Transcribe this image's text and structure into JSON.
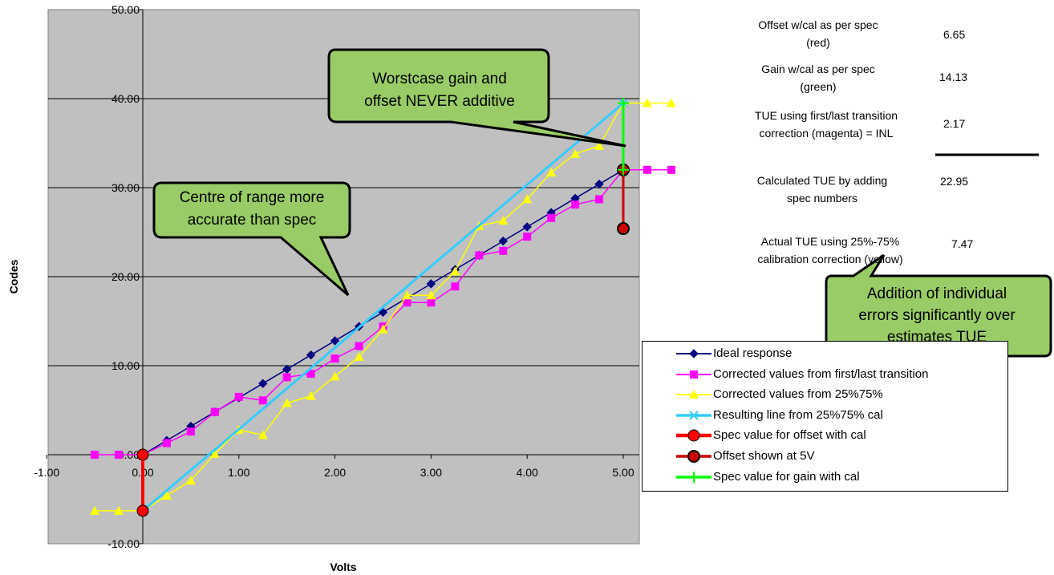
{
  "chart_data": {
    "type": "line",
    "xlabel": "Volts",
    "ylabel": "Codes",
    "xlim": [
      -1,
      6
    ],
    "ylim": [
      -10,
      50
    ],
    "x_ticks": [
      "-1.00",
      "0.00",
      "1.00",
      "2.00",
      "3.00",
      "4.00",
      "5.00"
    ],
    "y_ticks": [
      "-10.00",
      "0.00",
      "10.00",
      "20.00",
      "30.00",
      "40.00",
      "50.00"
    ],
    "grid": "horizontal",
    "legend_position": "bottom-right",
    "series": [
      {
        "name": "Ideal response",
        "color": "#000080",
        "marker": "diamond",
        "points": [
          [
            0,
            0
          ],
          [
            0.25,
            1.6
          ],
          [
            0.5,
            3.2
          ],
          [
            0.75,
            4.8
          ],
          [
            1.0,
            6.4
          ],
          [
            1.25,
            8.0
          ],
          [
            1.5,
            9.6
          ],
          [
            1.75,
            11.2
          ],
          [
            2.0,
            12.8
          ],
          [
            2.25,
            14.4
          ],
          [
            2.5,
            16.0
          ],
          [
            2.75,
            17.6
          ],
          [
            3.0,
            19.2
          ],
          [
            3.25,
            20.8
          ],
          [
            3.5,
            22.4
          ],
          [
            3.75,
            24.0
          ],
          [
            4.0,
            25.6
          ],
          [
            4.25,
            27.2
          ],
          [
            4.5,
            28.8
          ],
          [
            4.75,
            30.4
          ],
          [
            5.0,
            32.0
          ]
        ]
      },
      {
        "name": "Corrected values from first/last transition",
        "color": "#ff00ff",
        "marker": "square",
        "points": [
          [
            -0.5,
            0
          ],
          [
            -0.25,
            0
          ],
          [
            0,
            0
          ],
          [
            0.25,
            1.3
          ],
          [
            0.5,
            2.6
          ],
          [
            0.75,
            4.8
          ],
          [
            1.0,
            6.5
          ],
          [
            1.25,
            6.1
          ],
          [
            1.5,
            8.7
          ],
          [
            1.75,
            9.1
          ],
          [
            2.0,
            10.8
          ],
          [
            2.25,
            12.2
          ],
          [
            2.5,
            14.4
          ],
          [
            2.75,
            17.1
          ],
          [
            3.0,
            17.1
          ],
          [
            3.25,
            18.9
          ],
          [
            3.5,
            22.4
          ],
          [
            3.75,
            22.9
          ],
          [
            4.0,
            24.5
          ],
          [
            4.25,
            26.6
          ],
          [
            4.5,
            28.1
          ],
          [
            4.75,
            28.7
          ],
          [
            5.0,
            32.0
          ],
          [
            5.25,
            32.0
          ],
          [
            5.5,
            32.0
          ]
        ]
      },
      {
        "name": "Corrected values from 25%75%",
        "color": "#ffff00",
        "marker": "triangle",
        "points": [
          [
            -0.5,
            -6.3
          ],
          [
            -0.25,
            -6.3
          ],
          [
            0,
            -6.3
          ],
          [
            0.25,
            -4.6
          ],
          [
            0.5,
            -2.9
          ],
          [
            0.75,
            0.1
          ],
          [
            1.0,
            2.8
          ],
          [
            1.25,
            2.2
          ],
          [
            1.5,
            5.8
          ],
          [
            1.75,
            6.6
          ],
          [
            2.0,
            8.8
          ],
          [
            2.25,
            11.0
          ],
          [
            2.5,
            14.1
          ],
          [
            2.75,
            17.9
          ],
          [
            3.0,
            17.9
          ],
          [
            3.25,
            20.6
          ],
          [
            3.5,
            25.7
          ],
          [
            3.75,
            26.3
          ],
          [
            4.0,
            28.7
          ],
          [
            4.25,
            31.7
          ],
          [
            4.5,
            33.8
          ],
          [
            4.75,
            34.7
          ],
          [
            5.0,
            39.5
          ],
          [
            5.25,
            39.5
          ],
          [
            5.5,
            39.5
          ]
        ]
      },
      {
        "name": "Resulting line from 25%75% cal",
        "color": "#33ccff",
        "marker": "x",
        "points": [
          [
            0,
            -6.3
          ],
          [
            5.0,
            39.5
          ]
        ]
      },
      {
        "name": "Spec value for offset with cal",
        "color": "#ff0000",
        "marker": "circle",
        "points": [
          [
            0,
            0
          ],
          [
            0,
            -6.3
          ]
        ]
      },
      {
        "name": "Offset shown at 5V",
        "color": "#cc0000",
        "marker": "circle-outline",
        "points": [
          [
            5.0,
            32.0
          ],
          [
            5.0,
            25.4
          ]
        ]
      },
      {
        "name": "Spec value for gain with cal",
        "color": "#00ff00",
        "marker": "plus",
        "points": [
          [
            5.0,
            32.0
          ],
          [
            5.0,
            39.5
          ]
        ]
      }
    ],
    "annotations": [
      {
        "text_lines": [
          "Worstcase gain and",
          "offset NEVER additive"
        ]
      },
      {
        "text_lines": [
          "Centre of range more",
          "accurate than spec"
        ]
      },
      {
        "text_lines": [
          "Addition of individual",
          "errors significantly over",
          "estimates TUE"
        ]
      }
    ]
  },
  "stats": {
    "offset_label_1": "Offset w/cal as per spec",
    "offset_label_2": "(red)",
    "offset_value": "6.65",
    "gain_label_1": "Gain w/cal as per spec",
    "gain_label_2": "(green)",
    "gain_value": "14.13",
    "tue_first_label_1": "TUE using first/last transition",
    "tue_first_label_2": "correction (magenta) = INL",
    "tue_first_value": "2.17",
    "calc_label_1": "Calculated TUE by adding",
    "calc_label_2": "spec numbers",
    "calc_value": "22.95",
    "actual_label_1": "Actual TUE using 25%-75%",
    "actual_label_2": "calibration correction (yellow)",
    "actual_value": "7.47"
  }
}
